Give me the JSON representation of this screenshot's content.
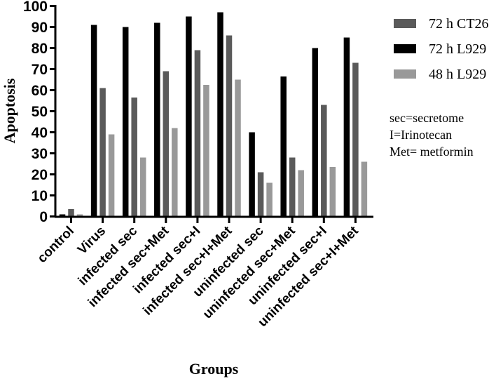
{
  "chart_data": {
    "type": "bar",
    "title": "",
    "xlabel": "Groups",
    "ylabel": "Apoptosis",
    "ylim": [
      0,
      100
    ],
    "yticks": [
      0,
      10,
      20,
      30,
      40,
      50,
      60,
      70,
      80,
      90,
      100
    ],
    "grid": false,
    "legend_position": "right",
    "categories": [
      "control",
      "Virus",
      "infected sec",
      "infected sec+Met",
      "infected sec+I",
      "infected sec+I+Met",
      "uninfected sec",
      "uninfected sec+Met",
      "uninfected sec+I",
      "uninfected sec+I+Met"
    ],
    "series": [
      {
        "name": "72 h L929",
        "color": "#000000",
        "values": [
          1,
          91,
          90,
          92,
          95,
          97,
          40,
          66.5,
          80,
          85
        ]
      },
      {
        "name": "72 h CT26",
        "color": "#5a5a5a",
        "values": [
          3.5,
          61,
          56.5,
          69,
          79,
          86,
          21,
          28,
          53,
          73
        ]
      },
      {
        "name": "48 h L929",
        "color": "#999999",
        "values": [
          1,
          39,
          28,
          42,
          62.5,
          65,
          16,
          22,
          23.5,
          26
        ]
      }
    ],
    "legend": [
      {
        "name": "72 h CT26",
        "color": "#5a5a5a"
      },
      {
        "name": "72 h L929",
        "color": "#000000"
      },
      {
        "name": "48 h L929",
        "color": "#999999"
      }
    ],
    "annotations": [
      "sec=secretome",
      "I=Irinotecan",
      "Met= metformin"
    ]
  }
}
